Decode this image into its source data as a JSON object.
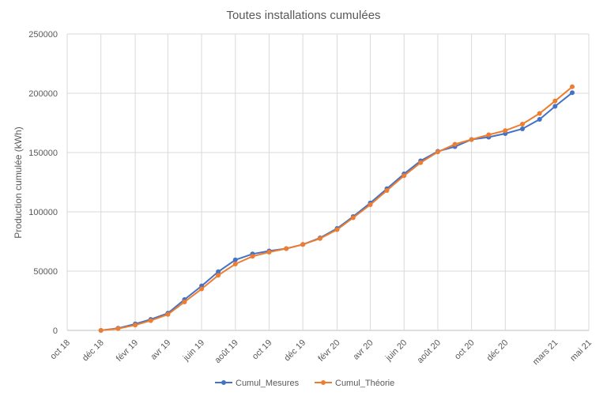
{
  "chart_data": {
    "type": "line",
    "title": "Toutes installations cumulées",
    "xlabel": "",
    "ylabel": "Production cumulée (kWh)",
    "ylim": [
      0,
      250000
    ],
    "yticks": [
      "0",
      "50000",
      "100000",
      "150000",
      "200000",
      "250000"
    ],
    "xlim": [
      "2018-10-01",
      "2021-05-01"
    ],
    "xticks": [
      {
        "date": "2018-10-01",
        "label": "oct 18"
      },
      {
        "date": "2018-12-01",
        "label": "déc 18"
      },
      {
        "date": "2019-02-01",
        "label": "févr 19"
      },
      {
        "date": "2019-04-01",
        "label": "avr 19"
      },
      {
        "date": "2019-06-01",
        "label": "juin 19"
      },
      {
        "date": "2019-08-01",
        "label": "août 19"
      },
      {
        "date": "2019-10-01",
        "label": "oct 19"
      },
      {
        "date": "2019-12-01",
        "label": "déc 19"
      },
      {
        "date": "2020-02-01",
        "label": "févr 20"
      },
      {
        "date": "2020-04-01",
        "label": "avr 20"
      },
      {
        "date": "2020-06-01",
        "label": "juin 20"
      },
      {
        "date": "2020-08-01",
        "label": "août 20"
      },
      {
        "date": "2020-10-01",
        "label": "oct 20"
      },
      {
        "date": "2020-12-01",
        "label": "déc 20"
      },
      {
        "date": "2021-03-01",
        "label": "mars 21"
      },
      {
        "date": "2021-05-01",
        "label": "mai 21"
      }
    ],
    "grid": true,
    "legend": "bottom",
    "x": [
      "2018-12-01",
      "2019-01-01",
      "2019-02-01",
      "2019-03-01",
      "2019-04-01",
      "2019-05-01",
      "2019-06-01",
      "2019-07-01",
      "2019-08-01",
      "2019-09-01",
      "2019-10-01",
      "2019-11-01",
      "2019-12-01",
      "2020-01-01",
      "2020-02-01",
      "2020-03-01",
      "2020-04-01",
      "2020-05-01",
      "2020-06-01",
      "2020-07-01",
      "2020-08-01",
      "2020-09-01",
      "2020-10-01",
      "2020-11-01",
      "2020-12-01",
      "2021-01-01",
      "2021-02-01",
      "2021-03-01",
      "2021-04-01",
      "2021-05-01"
    ],
    "series": [
      {
        "name": "Cumul_Mesures",
        "color": "#4472C4",
        "values": [
          0,
          1800,
          5500,
          9300,
          14500,
          26000,
          37500,
          49500,
          59500,
          64500,
          67000,
          69000,
          72500,
          78000,
          86000,
          96000,
          107500,
          119500,
          132000,
          143000,
          151000,
          155000,
          161000,
          163000,
          166000,
          170000,
          178000,
          189000,
          200500,
          null
        ]
      },
      {
        "name": "Cumul_Théorie",
        "color": "#ED7D31",
        "values": [
          0,
          1500,
          4500,
          8300,
          13500,
          24000,
          35000,
          46500,
          56000,
          62500,
          66000,
          69000,
          72500,
          77500,
          85000,
          95000,
          106000,
          118000,
          130500,
          141500,
          150500,
          157000,
          161000,
          165000,
          168500,
          174000,
          183000,
          193500,
          205500,
          null
        ]
      }
    ]
  }
}
